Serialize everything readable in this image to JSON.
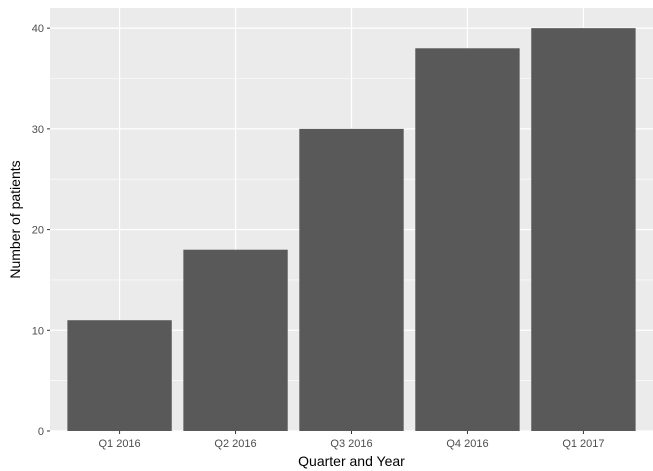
{
  "chart_data": {
    "type": "bar",
    "title": "",
    "xlabel": "Quarter and Year",
    "ylabel": "Number of patients",
    "categories": [
      "Q1 2016",
      "Q2 2016",
      "Q3 2016",
      "Q4 2016",
      "Q1 2017"
    ],
    "values": [
      11,
      18,
      30,
      38,
      40
    ],
    "ylim": [
      0,
      42
    ],
    "yticks": [
      0,
      10,
      20,
      30,
      40
    ],
    "grid": true,
    "legend": "none",
    "colors": {
      "bar": "#595959",
      "panel": "#ebebeb",
      "grid_major": "#ffffff",
      "tick_text": "#4d4d4d",
      "tick_mark": "#333333"
    }
  }
}
